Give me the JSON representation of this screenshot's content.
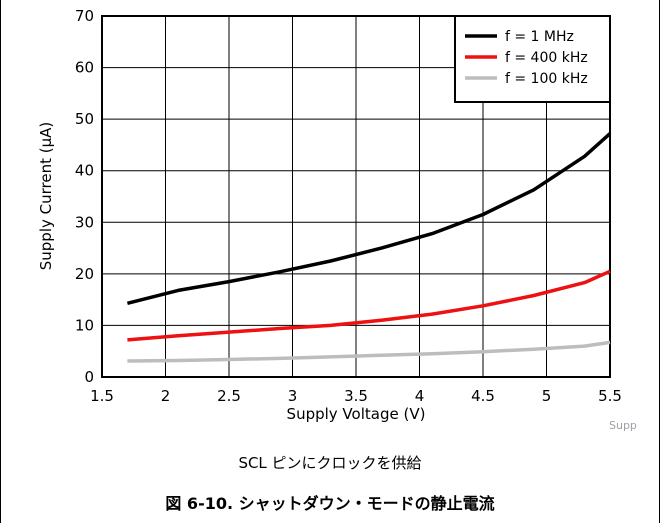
{
  "chart_data": {
    "type": "line",
    "xlabel": "Supply Voltage (V)",
    "ylabel": "Supply Current (µA)",
    "xlim": [
      1.5,
      5.5
    ],
    "ylim": [
      0,
      70
    ],
    "xticks": [
      "1.5",
      "2",
      "2.5",
      "3",
      "3.5",
      "4",
      "4.5",
      "5",
      "5.5"
    ],
    "yticks": [
      "0",
      "10",
      "20",
      "30",
      "40",
      "50",
      "60",
      "70"
    ],
    "grid": true,
    "legend_position": "top-right",
    "series": [
      {
        "name": "f = 1 MHz",
        "color": "#000000",
        "x": [
          1.7,
          2.1,
          2.5,
          2.9,
          3.3,
          3.7,
          4.1,
          4.5,
          4.9,
          5.3,
          5.5
        ],
        "y": [
          14.3,
          16.8,
          18.5,
          20.4,
          22.5,
          25.0,
          27.8,
          31.5,
          36.3,
          42.8,
          47.2
        ]
      },
      {
        "name": "f = 400 kHz",
        "color": "#ee1111",
        "x": [
          1.7,
          2.1,
          2.5,
          2.9,
          3.3,
          3.7,
          4.1,
          4.5,
          4.9,
          5.3,
          5.5
        ],
        "y": [
          7.2,
          8.0,
          8.7,
          9.4,
          10.0,
          11.0,
          12.2,
          13.8,
          15.8,
          18.3,
          20.5
        ]
      },
      {
        "name": "f = 100 kHz",
        "color": "#bdbdbd",
        "x": [
          1.7,
          2.1,
          2.5,
          2.9,
          3.3,
          3.7,
          4.1,
          4.5,
          4.9,
          5.3,
          5.5
        ],
        "y": [
          3.1,
          3.2,
          3.4,
          3.6,
          3.9,
          4.2,
          4.5,
          4.9,
          5.4,
          6.0,
          6.7
        ]
      }
    ]
  },
  "watermark": "Supp",
  "subcaption": "SCL ピンにクロックを供給",
  "caption": "図 6-10. シャットダウン・モードの静止電流"
}
